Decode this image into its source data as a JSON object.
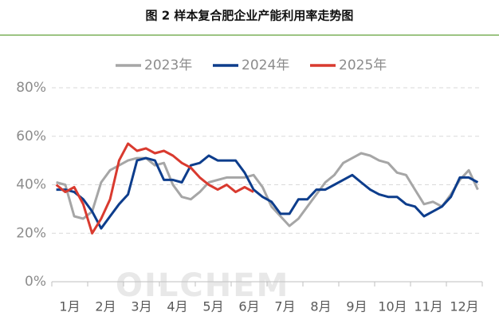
{
  "chart_data": {
    "type": "line",
    "title": "图 2  样本复合肥企业产能利用率走势图",
    "watermark": "OILCHEM",
    "categories": [
      null,
      "1月",
      null,
      null,
      null,
      "2月",
      null,
      null,
      null,
      "3月",
      null,
      null,
      null,
      "4月",
      null,
      null,
      null,
      "5月",
      null,
      null,
      null,
      "6月",
      null,
      null,
      null,
      "7月",
      null,
      null,
      null,
      "8月",
      null,
      null,
      null,
      "9月",
      null,
      null,
      null,
      "10月",
      null,
      null,
      null,
      "11月",
      null,
      null,
      null,
      "12月",
      null,
      null
    ],
    "series": [
      {
        "name": "2023年",
        "color": "#a6a6a6",
        "values": [
          41,
          40,
          27,
          26,
          29,
          41,
          46,
          48,
          50,
          51,
          51,
          48,
          49,
          40,
          35,
          34,
          37,
          41,
          42,
          43,
          43,
          43,
          44,
          39,
          31,
          27,
          23,
          26,
          31,
          36,
          41,
          44,
          49,
          51,
          53,
          52,
          50,
          49,
          45,
          44,
          38,
          32,
          33,
          31,
          36,
          42,
          46,
          38
        ]
      },
      {
        "name": "2024年",
        "color": "#0d3d8c",
        "values": [
          38,
          38,
          37,
          34,
          29,
          22,
          27,
          32,
          36,
          50,
          51,
          50,
          42,
          42,
          41,
          48,
          49,
          52,
          50,
          50,
          50,
          45,
          38,
          35,
          33,
          28,
          28,
          34,
          34,
          38,
          38,
          40,
          42,
          44,
          41,
          38,
          36,
          35,
          35,
          32,
          31,
          27,
          29,
          31,
          35,
          43,
          43,
          41
        ]
      },
      {
        "name": "2025年",
        "color": "#d93a2f",
        "values": [
          40,
          37,
          39,
          32,
          20,
          26,
          34,
          50,
          57,
          54,
          55,
          53,
          54,
          52,
          49,
          47,
          43,
          40,
          38,
          40,
          37,
          39,
          37,
          null,
          null,
          null,
          null,
          null,
          null,
          null,
          null,
          null,
          null,
          null,
          null,
          null,
          null,
          null,
          null,
          null,
          null,
          null,
          null,
          null,
          null,
          null,
          null,
          null
        ]
      }
    ],
    "ylim": [
      0,
      80
    ],
    "yticks": [
      {
        "value": 0,
        "label": "0%"
      },
      {
        "value": 20,
        "label": "20%"
      },
      {
        "value": 40,
        "label": "40%"
      },
      {
        "value": 60,
        "label": "60%"
      },
      {
        "value": 80,
        "label": "80%"
      }
    ],
    "grid": true,
    "legend": "top"
  }
}
